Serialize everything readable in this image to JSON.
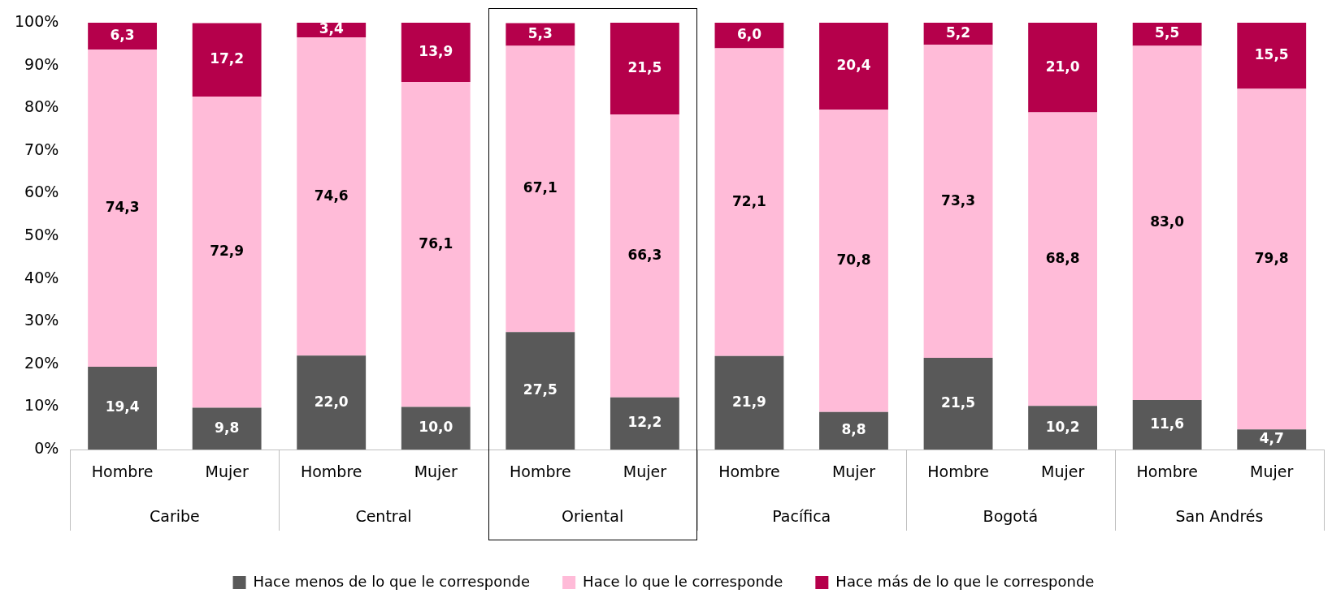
{
  "chart_data": {
    "type": "bar",
    "stacked": true,
    "categories": [
      "Hombre",
      "Mujer",
      "Hombre",
      "Mujer",
      "Hombre",
      "Mujer",
      "Hombre",
      "Mujer",
      "Hombre",
      "Mujer",
      "Hombre",
      "Mujer"
    ],
    "annotations": [
      "Caribe",
      "Central",
      "Oriental",
      "Pacífica",
      "Bogotá",
      "San Andrés"
    ],
    "series": [
      {
        "name": "Hace menos de lo que le corresponde",
        "color": "#595959",
        "values": [
          19.4,
          9.8,
          22.0,
          10.0,
          27.5,
          12.2,
          21.9,
          8.8,
          21.5,
          10.2,
          11.6,
          4.7
        ],
        "value_labels": [
          "19,4",
          "9,8",
          "22,0",
          "10,0",
          "27,5",
          "12,2",
          "21,9",
          "8,8",
          "21,5",
          "10,2",
          "11,6",
          "4,7"
        ]
      },
      {
        "name": "Hace lo que le corresponde",
        "color": "#ffbbd8",
        "values": [
          74.3,
          72.9,
          74.6,
          76.1,
          67.1,
          66.3,
          72.1,
          70.8,
          73.3,
          68.8,
          83.0,
          79.8
        ],
        "value_labels": [
          "74,3",
          "72,9",
          "74,6",
          "76,1",
          "67,1",
          "66,3",
          "72,1",
          "70,8",
          "73,3",
          "68,8",
          "83,0",
          "79,8"
        ]
      },
      {
        "name": "Hace más de lo que le corresponde",
        "color": "#b5004b",
        "values": [
          6.3,
          17.2,
          3.4,
          13.9,
          5.3,
          21.5,
          6.0,
          20.4,
          5.2,
          21.0,
          5.5,
          15.5
        ],
        "value_labels": [
          "6,3",
          "17,2",
          "3,4",
          "13,9",
          "5,3",
          "21,5",
          "6,0",
          "20,4",
          "5,2",
          "21,0",
          "5,5",
          "15,5"
        ]
      }
    ],
    "ylim": [
      0,
      100
    ],
    "yticks": [
      {
        "value": 0,
        "label": "0%"
      },
      {
        "value": 10,
        "label": "10%"
      },
      {
        "value": 20,
        "label": "20%"
      },
      {
        "value": 30,
        "label": "30%"
      },
      {
        "value": 40,
        "label": "40%"
      },
      {
        "value": 50,
        "label": "50%"
      },
      {
        "value": 60,
        "label": "60%"
      },
      {
        "value": 70,
        "label": "70%"
      },
      {
        "value": 80,
        "label": "80%"
      },
      {
        "value": 90,
        "label": "90%"
      },
      {
        "value": 100,
        "label": "100%"
      }
    ],
    "grid": false,
    "legend": "bottom"
  }
}
